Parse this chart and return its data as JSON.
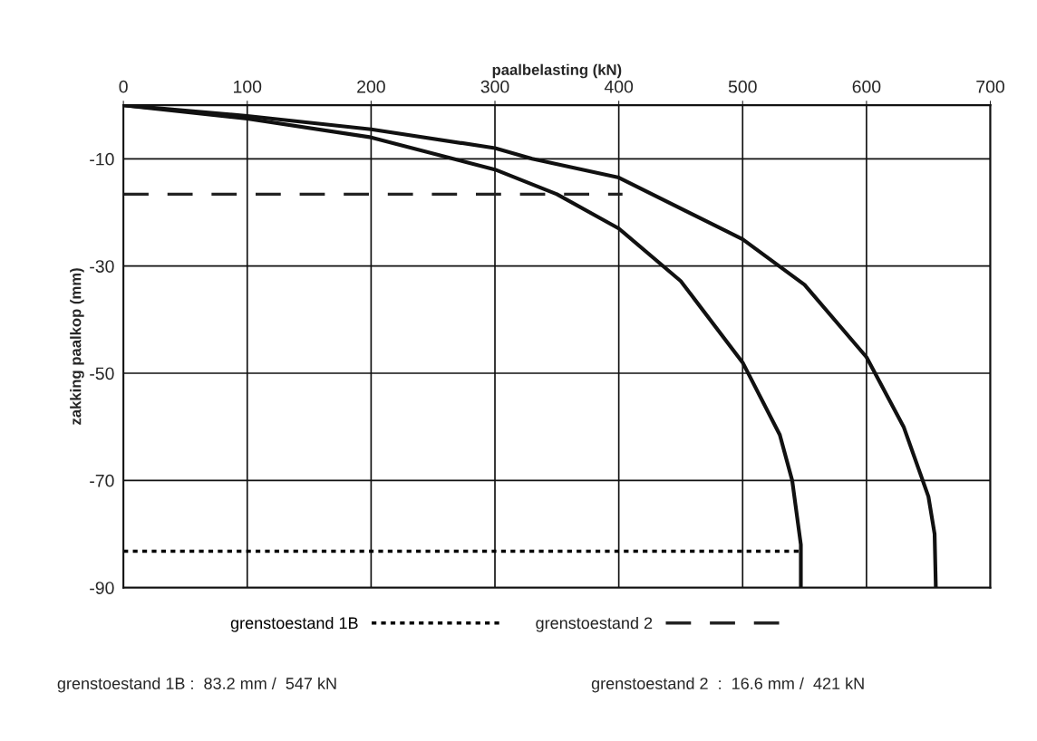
{
  "chart_data": {
    "type": "line",
    "xlabel": "paalbelasting (kN)",
    "ylabel": "zakking paalkop (mm)",
    "xlim": [
      0,
      700
    ],
    "xticks": [
      0,
      100,
      200,
      300,
      400,
      500,
      600,
      700
    ],
    "ylim": [
      -90,
      0
    ],
    "yticks": [
      -10,
      -30,
      -50,
      -70,
      -90
    ],
    "grid": true,
    "legend": "bottom",
    "marker": "none",
    "series": [
      {
        "color": "#111111",
        "line_style": "solid",
        "x": [
          0,
          100,
          200,
          300,
          350,
          400,
          450,
          500,
          530,
          540,
          547,
          547
        ],
        "values": [
          0,
          -2.5,
          -6,
          -12,
          -16.6,
          -23,
          -32.8,
          -48,
          -61.5,
          -70,
          -82,
          -90
        ]
      },
      {
        "color": "#111111",
        "line_style": "solid",
        "x": [
          0,
          100,
          200,
          300,
          330,
          400,
          500,
          550,
          600,
          630,
          650,
          655,
          656
        ],
        "values": [
          0,
          -2,
          -4.5,
          -8,
          -10,
          -13.5,
          -25,
          -33.5,
          -47,
          -60,
          -73,
          -80,
          -90
        ]
      },
      {
        "name": "grenstoestand 1B",
        "color": "#000000",
        "line_style": "dotted",
        "x": [
          0,
          547
        ],
        "values": [
          -83.2,
          -83.2
        ]
      },
      {
        "name": "grenstoestand 2",
        "color": "#222222",
        "line_style": "dashed",
        "x": [
          0,
          403
        ],
        "values": [
          -16.6,
          -16.6
        ]
      }
    ],
    "annotations": [
      "grenstoestand 1B :  83.2 mm /  547 kN",
      "grenstoestand 2  :  16.6 mm /  421 kN"
    ]
  }
}
